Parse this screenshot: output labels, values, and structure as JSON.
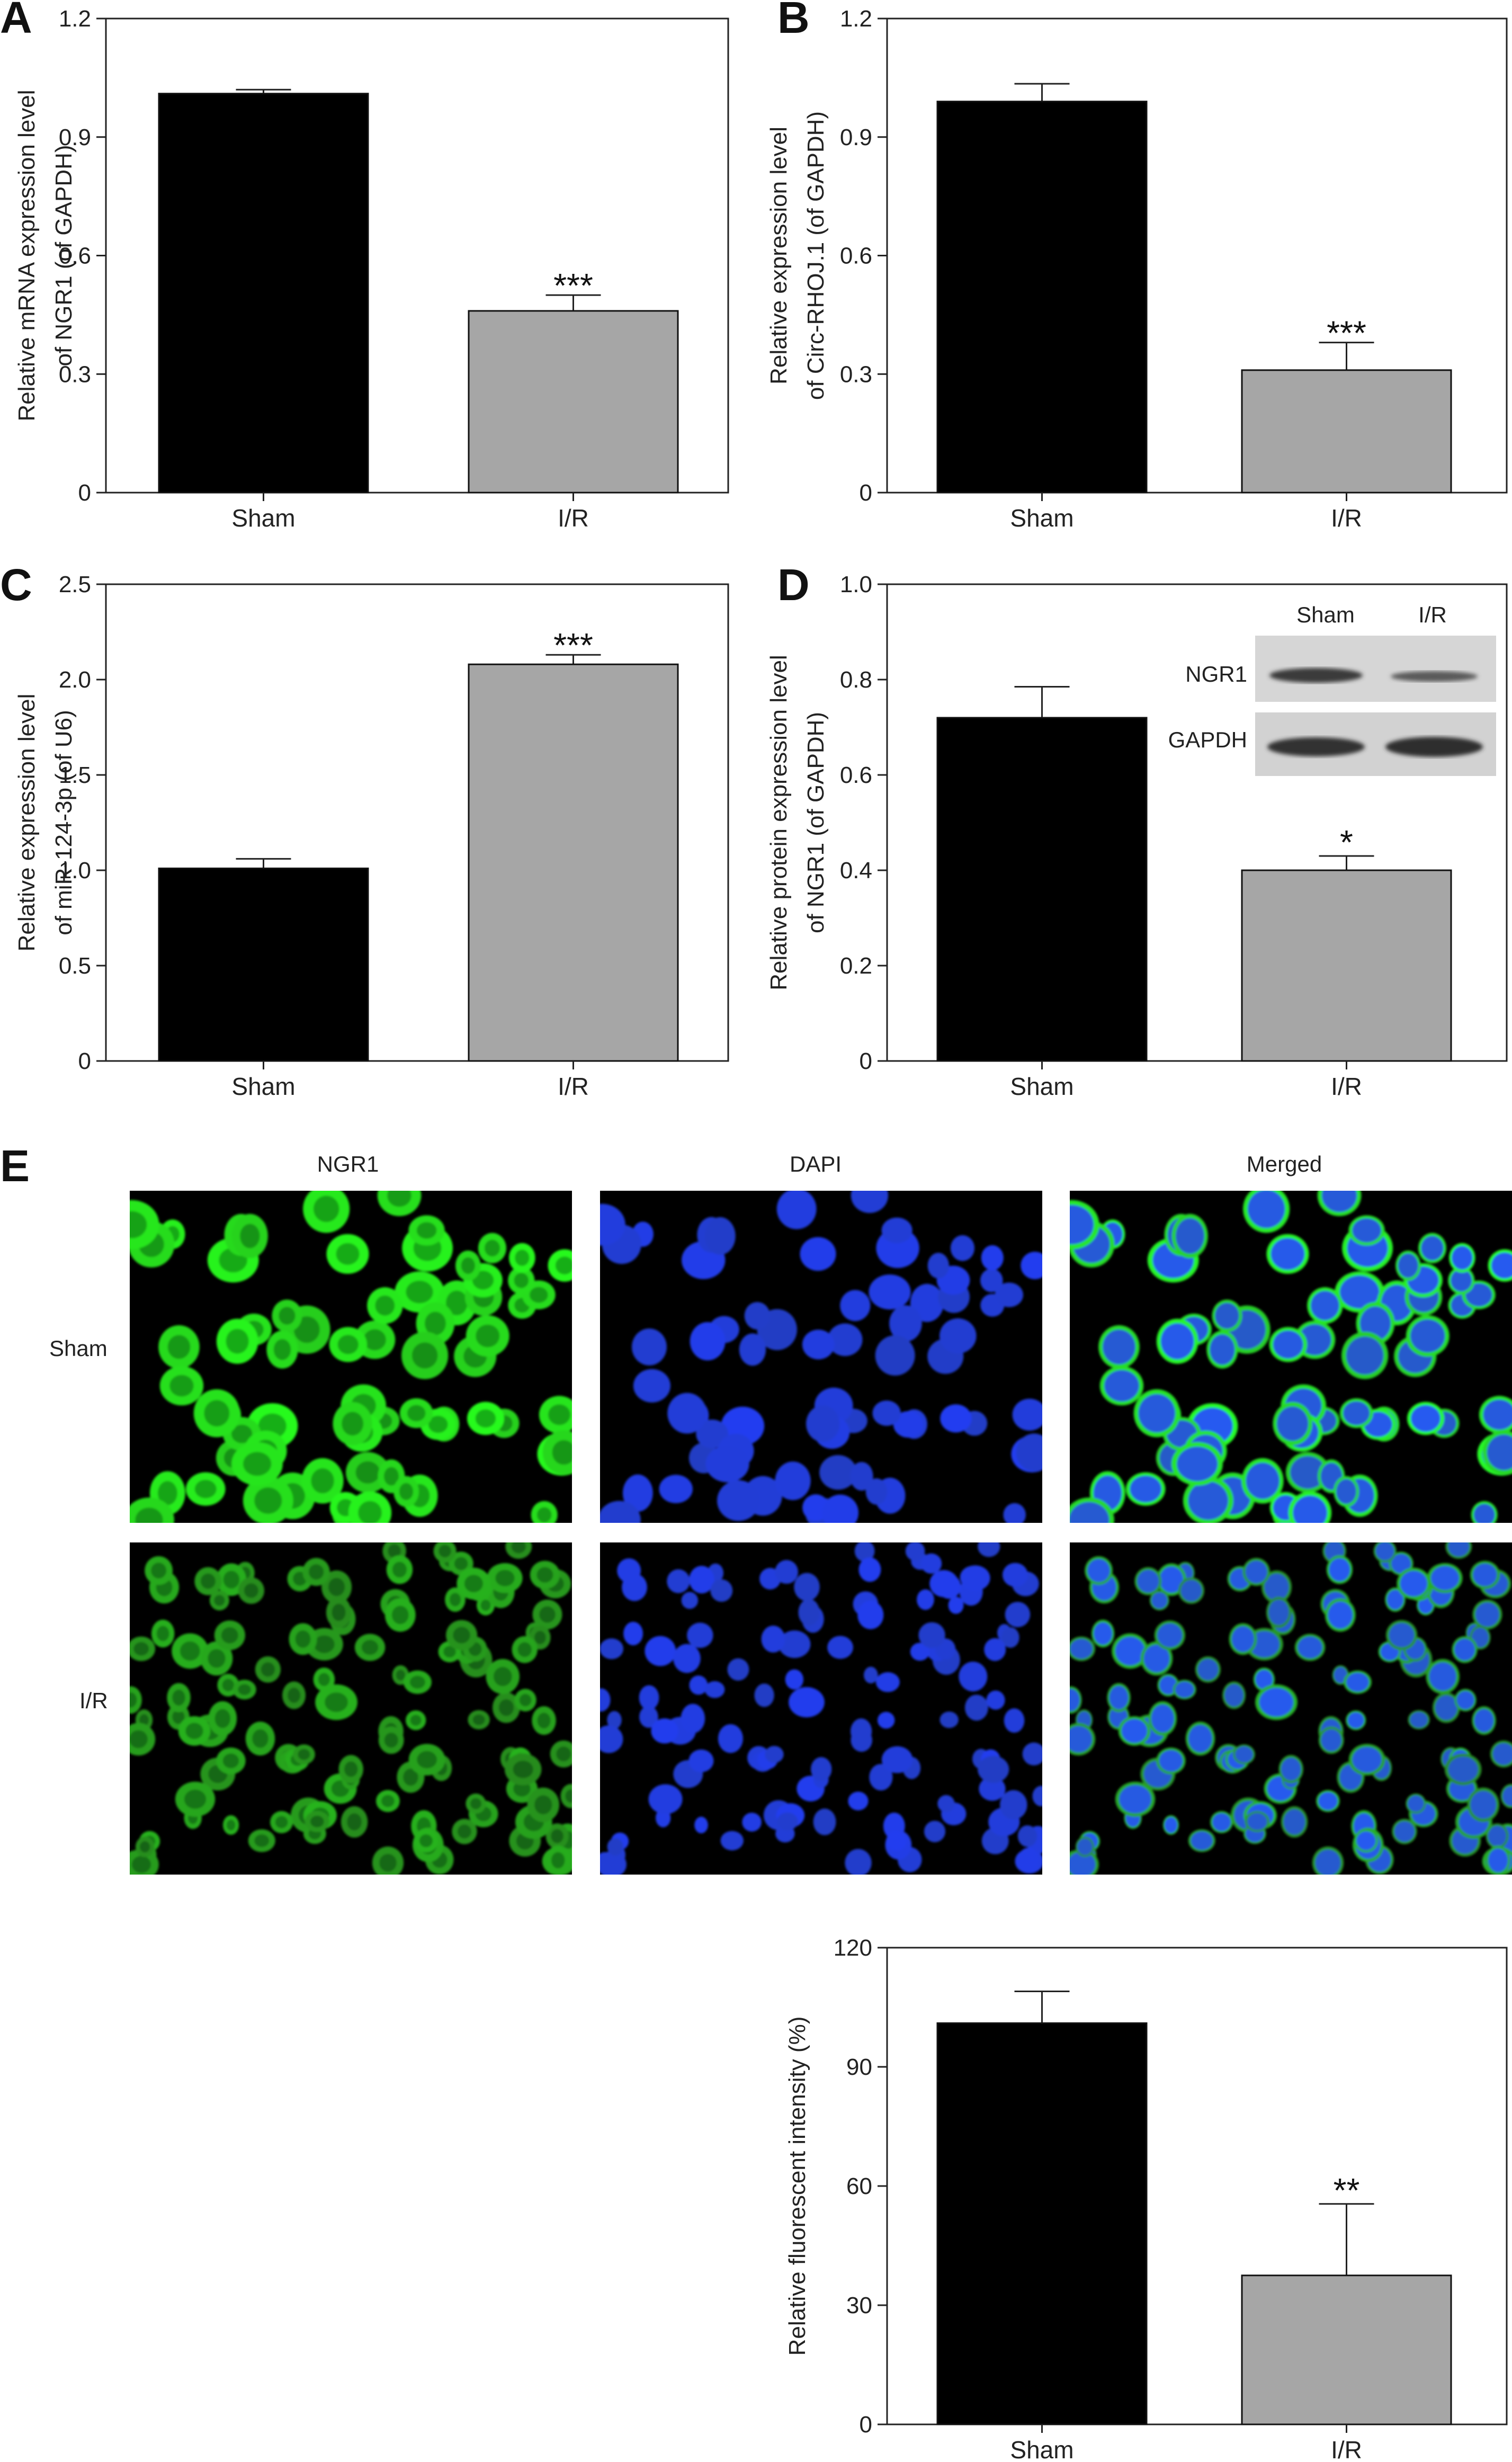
{
  "chart_data": [
    {
      "panel": "A",
      "type": "bar",
      "categories": [
        "Sham",
        "I/R"
      ],
      "values": [
        1.01,
        0.46
      ],
      "errors": [
        0.01,
        0.04
      ],
      "significance": [
        "",
        "***"
      ],
      "colors": [
        "#000000",
        "#a6a6a6"
      ],
      "title": "",
      "xlabel": "",
      "ylabel": [
        "Relative mRNA expression level",
        "of NGR1 (of GAPDH)"
      ],
      "ylim": [
        0,
        1.2
      ],
      "yticks": [
        "0",
        "0.3",
        "0.6",
        "0.9",
        "1.2"
      ],
      "grid": false
    },
    {
      "panel": "B",
      "type": "bar",
      "categories": [
        "Sham",
        "I/R"
      ],
      "values": [
        0.99,
        0.31
      ],
      "errors": [
        0.045,
        0.07
      ],
      "significance": [
        "",
        "***"
      ],
      "colors": [
        "#000000",
        "#a6a6a6"
      ],
      "title": "",
      "xlabel": "",
      "ylabel": [
        "Relative expression level",
        "of Circ-RHOJ.1 (of GAPDH)"
      ],
      "ylim": [
        0,
        1.2
      ],
      "yticks": [
        "0",
        "0.3",
        "0.6",
        "0.9",
        "1.2"
      ],
      "grid": false
    },
    {
      "panel": "C",
      "type": "bar",
      "categories": [
        "Sham",
        "I/R"
      ],
      "values": [
        1.01,
        2.08
      ],
      "errors": [
        0.05,
        0.05
      ],
      "significance": [
        "",
        "***"
      ],
      "colors": [
        "#000000",
        "#a6a6a6"
      ],
      "title": "",
      "xlabel": "",
      "ylabel": [
        "Relative expression level",
        "of miR-124-3p (of U6)"
      ],
      "ylim": [
        0,
        2.5
      ],
      "yticks": [
        "0",
        "0.5",
        "1.0",
        "1.5",
        "2.0",
        "2.5"
      ],
      "grid": false
    },
    {
      "panel": "D",
      "type": "bar",
      "categories": [
        "Sham",
        "I/R"
      ],
      "values": [
        0.72,
        0.4
      ],
      "errors": [
        0.065,
        0.03
      ],
      "significance": [
        "",
        "*"
      ],
      "colors": [
        "#000000",
        "#a6a6a6"
      ],
      "title": "",
      "xlabel": "",
      "ylabel": [
        "Relative protein expression level",
        "of NGR1 (of GAPDH)"
      ],
      "ylim": [
        0,
        1.0
      ],
      "yticks": [
        "0",
        "0.2",
        "0.4",
        "0.6",
        "0.8",
        "1.0"
      ],
      "grid": false,
      "inset_blot": {
        "columns": [
          "Sham",
          "I/R"
        ],
        "rows": [
          "NGR1",
          "GAPDH"
        ]
      }
    },
    {
      "panel": "E",
      "type": "bar",
      "categories": [
        "Sham",
        "I/R"
      ],
      "values": [
        101,
        37.5
      ],
      "errors": [
        8,
        18
      ],
      "significance": [
        "",
        "**"
      ],
      "colors": [
        "#000000",
        "#a6a6a6"
      ],
      "title": "",
      "xlabel": "",
      "ylabel": [
        "Relative fluorescent intensity (%)"
      ],
      "ylim": [
        0,
        120
      ],
      "yticks": [
        "0",
        "30",
        "60",
        "90",
        "120"
      ],
      "grid": false
    }
  ],
  "micrographs": {
    "panel": "E",
    "columns": [
      "NGR1",
      "DAPI",
      "Merged"
    ],
    "rows": [
      "Sham",
      "I/R"
    ]
  },
  "panel_letters": [
    "A",
    "B",
    "C",
    "D",
    "E"
  ]
}
